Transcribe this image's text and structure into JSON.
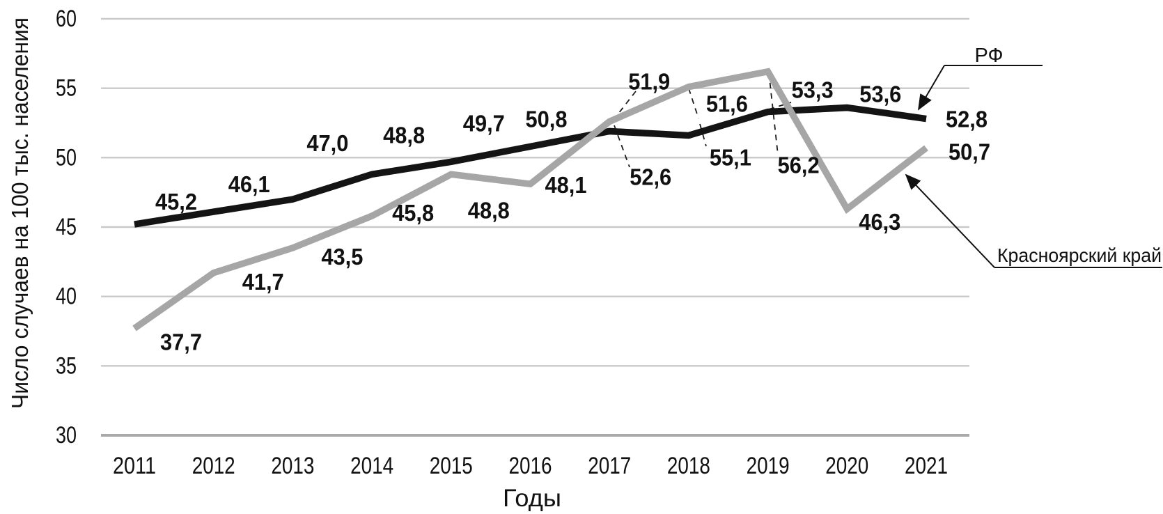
{
  "chart_data": {
    "type": "line",
    "title": "",
    "x": [
      2011,
      2012,
      2013,
      2014,
      2015,
      2016,
      2017,
      2018,
      2019,
      2020,
      2021
    ],
    "xlabel": "Годы",
    "ylabel": "Число случаев на 100 тыс. населения",
    "ylim": [
      30,
      60
    ],
    "yticks": [
      30,
      35,
      40,
      45,
      50,
      55,
      60
    ],
    "grid": true,
    "decimal_separator": ",",
    "legend_position": "right-callouts",
    "series": [
      {
        "key": "rf",
        "name": "РФ",
        "color": "#141414",
        "values": [
          45.2,
          46.1,
          47.0,
          48.8,
          49.7,
          50.8,
          51.9,
          51.6,
          53.3,
          53.6,
          52.8
        ]
      },
      {
        "key": "krasnoyarsk",
        "name": "Красноярский край",
        "color": "#a6a6a6",
        "values": [
          37.7,
          41.7,
          43.5,
          45.8,
          48.8,
          48.1,
          52.6,
          55.1,
          56.2,
          46.3,
          50.7
        ]
      }
    ]
  },
  "colors": {
    "gridline": "#c9c9c9",
    "axis_line": "#a9a9a9",
    "label_text": "#111111",
    "leader_line": "#1a1a1a",
    "callout_line": "#111111"
  }
}
